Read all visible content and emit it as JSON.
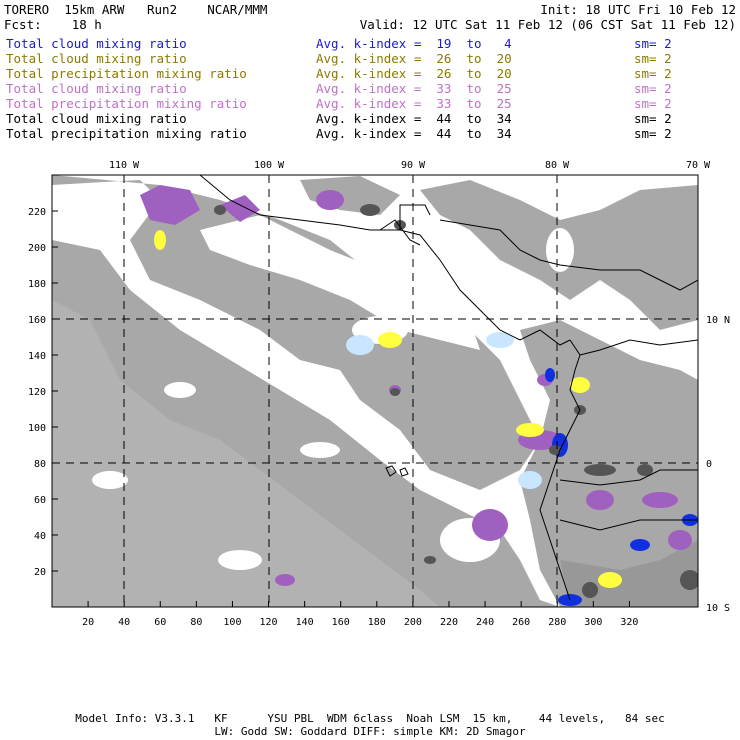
{
  "header": {
    "left_line1": "TORERO  15km ARW   Run2    NCAR/MMM",
    "right_line1": "Init: 18 UTC Fri 10 Feb 12",
    "left_line2": "Fcst:    18 h",
    "right_line2": "Valid: 12 UTC Sat 11 Feb 12 (06 CST Sat 11 Feb 12)"
  },
  "fields": [
    {
      "name": "Total cloud mixing ratio",
      "stat": "Avg. k-index =  19  to   4",
      "sm": "sm= 2",
      "color": "#1a1acc"
    },
    {
      "name": "Total cloud mixing ratio",
      "stat": "Avg. k-index =  26  to  20",
      "sm": "sm= 2",
      "color": "#8c7a00"
    },
    {
      "name": "Total precipitation mixing ratio",
      "stat": "Avg. k-index =  26  to  20",
      "sm": "sm= 2",
      "color": "#8c7a00"
    },
    {
      "name": "Total cloud mixing ratio",
      "stat": "Avg. k-index =  33  to  25",
      "sm": "sm= 2",
      "color": "#c070c8"
    },
    {
      "name": "Total precipitation mixing ratio",
      "stat": "Avg. k-index =  33  to  25",
      "sm": "sm= 2",
      "color": "#c070c8"
    },
    {
      "name": "Total cloud mixing ratio",
      "stat": "Avg. k-index =  44  to  34",
      "sm": "sm= 2",
      "color": "#000000"
    },
    {
      "name": "Total precipitation mixing ratio",
      "stat": "Avg. k-index =  44  to  34",
      "sm": "sm= 2",
      "color": "#000000"
    }
  ],
  "map": {
    "top_lon_labels": [
      "110 W",
      "100 W",
      "90 W",
      "80 W",
      "70 W"
    ],
    "right_lat_labels": [
      "10 N",
      "0",
      "10 S"
    ],
    "x_ticks": [
      "20",
      "40",
      "60",
      "80",
      "100",
      "120",
      "140",
      "160",
      "180",
      "200",
      "220",
      "240",
      "260",
      "280",
      "300",
      "320"
    ],
    "y_ticks": [
      "20",
      "40",
      "60",
      "80",
      "100",
      "120",
      "140",
      "160",
      "180",
      "200",
      "220"
    ],
    "colors": {
      "cloud_gray": "#a8a8a8",
      "dark_gray": "#555555",
      "purple": "#a060c0",
      "yellow": "#ffff40",
      "blue": "#1030e0",
      "light_blue": "#c8e6ff",
      "coast": "#000000"
    }
  },
  "footer": {
    "line1": "Model Info: V3.3.1   KF      YSU PBL  WDM 6class  Noah LSM  15 km,    44 levels,   84 sec",
    "line2": "LW: Godd SW: Goddard DIFF: simple KM: 2D Smagor"
  }
}
